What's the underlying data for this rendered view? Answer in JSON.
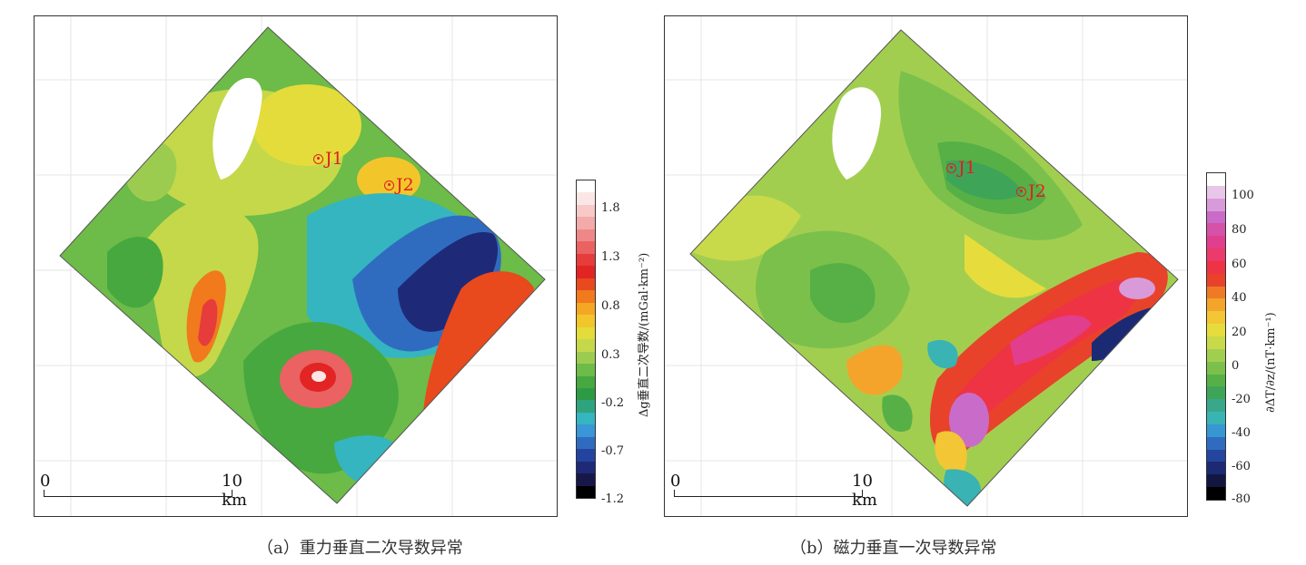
{
  "panel_a": {
    "markers": [
      "J1",
      "J2"
    ],
    "scale_zero": "0",
    "scale_end": "10 km",
    "colorbar": {
      "title": "Δg垂直二次导数/(mGal·km⁻²)",
      "ticks": [
        "1.8",
        "1.3",
        "0.8",
        "0.3",
        "-0.2",
        "-0.7",
        "-1.2"
      ],
      "colors": [
        "#ffffff",
        "#fbe6e6",
        "#f7c9c9",
        "#f3aaaa",
        "#ee8888",
        "#ea6262",
        "#e63c3c",
        "#e22424",
        "#e8491d",
        "#f07a1c",
        "#f5a623",
        "#f2c62b",
        "#e4dc3a",
        "#c4d84a",
        "#9ccc4f",
        "#6dbb48",
        "#46a83f",
        "#2d9a44",
        "#2fa37d",
        "#35b5c0",
        "#3a96d6",
        "#2f6cc0",
        "#23449e",
        "#1e2a78",
        "#181848",
        "#000000"
      ]
    },
    "caption": "（a）重力垂直二次导数异常"
  },
  "panel_b": {
    "markers": [
      "J1",
      "J2"
    ],
    "scale_zero": "0",
    "scale_end": "10 km",
    "colorbar": {
      "title": "∂ΔT/∂z/(nT·km⁻¹)",
      "ticks": [
        "100",
        "80",
        "60",
        "40",
        "20",
        "0",
        "-20",
        "-40",
        "-60",
        "-80"
      ],
      "colors": [
        "#ffffff",
        "#e8c6e8",
        "#d99ad9",
        "#c96cc9",
        "#d552a8",
        "#e23e8e",
        "#ec3a6a",
        "#ee3344",
        "#e8432a",
        "#ef7a26",
        "#f4a42a",
        "#f2c634",
        "#e6dd3c",
        "#c8da4a",
        "#a2ce50",
        "#7cc04c",
        "#56b046",
        "#3ea458",
        "#3aa78a",
        "#39b3b3",
        "#3797d2",
        "#2f6cc0",
        "#24459d",
        "#1c2a74",
        "#121640",
        "#000000"
      ]
    },
    "caption": "（b）磁力垂直一次导数异常"
  }
}
